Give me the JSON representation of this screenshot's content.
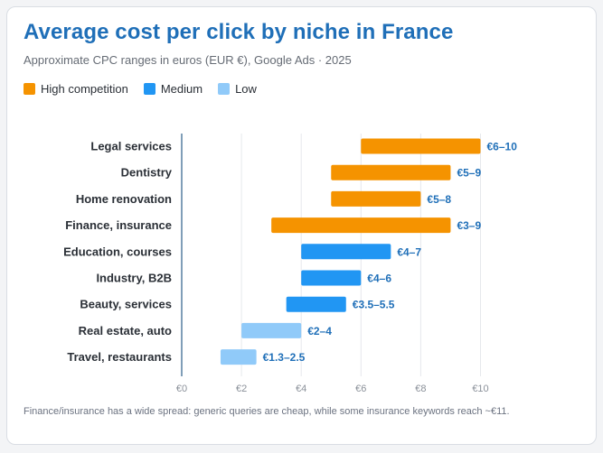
{
  "title": "Average cost per click by niche in France",
  "subtitle": "Approximate CPC ranges in euros (EUR €), Google Ads · 2025",
  "legend": [
    {
      "label": "High competition",
      "color": "#f59300"
    },
    {
      "label": "Medium",
      "color": "#2196f3"
    },
    {
      "label": "Low",
      "color": "#90caf9"
    }
  ],
  "footnote": "Finance/insurance has a wide spread: generic queries are cheap, while some insurance keywords reach ~€11.",
  "chart_data": {
    "type": "bar",
    "orientation": "horizontal-range",
    "xlim": [
      0,
      10
    ],
    "xticks": [
      0,
      2,
      4,
      6,
      8,
      10
    ],
    "xtick_labels": [
      "€0",
      "€2",
      "€4",
      "€6",
      "€8",
      "€10"
    ],
    "grid": true,
    "legend_position": "top-left",
    "rows": [
      {
        "category": "Legal services",
        "min": 6,
        "max": 10,
        "label": "€6–10",
        "group": "High competition"
      },
      {
        "category": "Dentistry",
        "min": 5,
        "max": 9,
        "label": "€5–9",
        "group": "High competition"
      },
      {
        "category": "Home renovation",
        "min": 5,
        "max": 8,
        "label": "€5–8",
        "group": "High competition"
      },
      {
        "category": "Finance, insurance",
        "min": 3,
        "max": 9,
        "label": "€3–9",
        "group": "High competition"
      },
      {
        "category": "Education, courses",
        "min": 4,
        "max": 7,
        "label": "€4–7",
        "group": "Medium"
      },
      {
        "category": "Industry, B2B",
        "min": 4,
        "max": 6,
        "label": "€4–6",
        "group": "Medium"
      },
      {
        "category": "Beauty, services",
        "min": 3.5,
        "max": 5.5,
        "label": "€3.5–5.5",
        "group": "Medium"
      },
      {
        "category": "Real estate, auto",
        "min": 2,
        "max": 4,
        "label": "€2–4",
        "group": "Low"
      },
      {
        "category": "Travel, restaurants",
        "min": 1.3,
        "max": 2.5,
        "label": "€1.3–2.5",
        "group": "Low"
      }
    ],
    "colors": {
      "High competition": "#f59300",
      "Medium": "#2196f3",
      "Low": "#90caf9",
      "value_label": "#1f6fb8",
      "grid": "#e6e8ec",
      "axis": "#2c5f8a"
    }
  }
}
